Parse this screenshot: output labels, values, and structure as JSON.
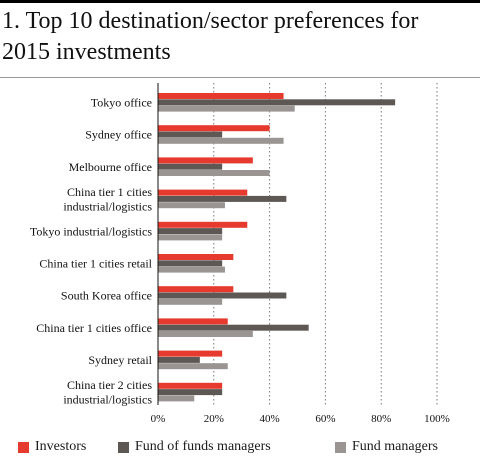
{
  "chart_data": {
    "type": "bar",
    "orientation": "horizontal",
    "title": "1. Top 10 destination/sector preferences for 2015 investments",
    "categories": [
      "Tokyo office",
      "Sydney office",
      "Melbourne office",
      "China tier 1 cities\nindustrial/logistics",
      "Tokyo industrial/logistics",
      "China tier 1 cities retail",
      "South Korea office",
      "China tier 1 cities office",
      "Sydney retail",
      "China tier 2 cities\nindustrial/logistics"
    ],
    "series": [
      {
        "name": "Investors",
        "color": "#e63a2e",
        "values": [
          45,
          40,
          34,
          32,
          32,
          27,
          27,
          25,
          23,
          23
        ]
      },
      {
        "name": "Fund of funds managers",
        "color": "#5e5855",
        "values": [
          85,
          23,
          23,
          46,
          23,
          23,
          46,
          54,
          15,
          23
        ]
      },
      {
        "name": "Fund managers",
        "color": "#9a9593",
        "values": [
          49,
          45,
          40,
          24,
          23,
          24,
          23,
          34,
          25,
          13
        ]
      }
    ],
    "xticks": [
      "0%",
      "20%",
      "40%",
      "60%",
      "80%",
      "100%"
    ],
    "xlim": [
      0,
      100
    ],
    "grid": "dotted vertical",
    "legend_position": "bottom"
  }
}
